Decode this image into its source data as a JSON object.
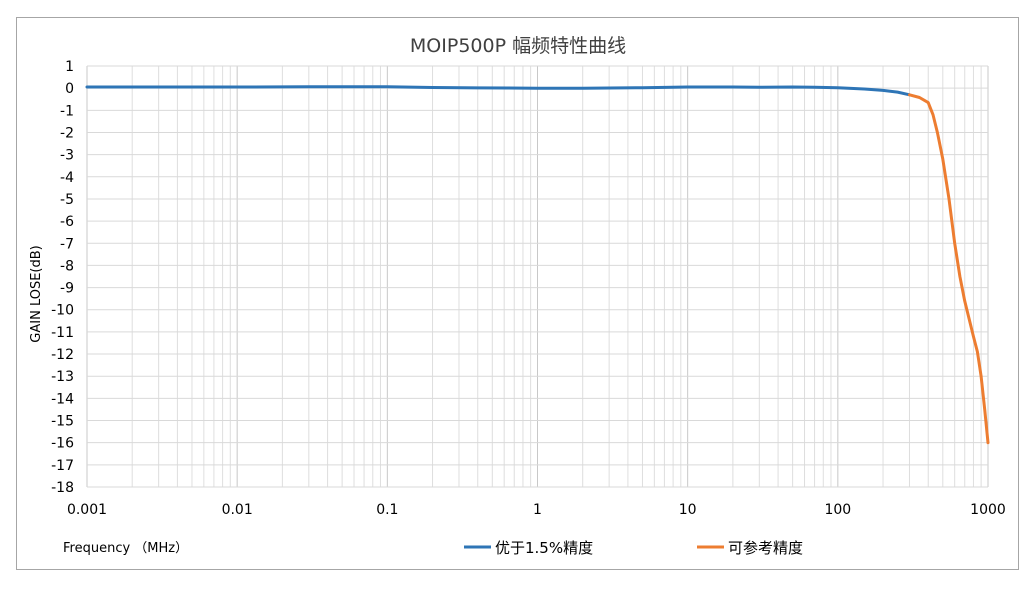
{
  "chart_data": {
    "type": "line",
    "title": "MOIP500P 幅频特性曲线",
    "xlabel": "Frequency （MHz）",
    "ylabel": "GAIN LOSE(dB)",
    "x_scale": "log",
    "xlim": [
      0.001,
      1000
    ],
    "ylim": [
      -18,
      1
    ],
    "grid": true,
    "legend_position": "bottom",
    "x_ticks": [
      "0.001",
      "0.01",
      "0.1",
      "1",
      "10",
      "100",
      "1000"
    ],
    "y_ticks": [
      "1",
      "0",
      "-1",
      "-2",
      "-3",
      "-4",
      "-5",
      "-6",
      "-7",
      "-8",
      "-9",
      "-10",
      "-11",
      "-12",
      "-13",
      "-14",
      "-15",
      "-16",
      "-17",
      "-18"
    ],
    "series": [
      {
        "name": "优于1.5%精度",
        "color": "#2e75b6",
        "x": [
          0.001,
          0.003,
          0.01,
          0.03,
          0.1,
          0.2,
          0.4,
          1,
          2,
          5,
          10,
          20,
          30,
          50,
          70,
          100,
          150,
          200,
          250,
          300
        ],
        "y": [
          0.05,
          0.05,
          0.05,
          0.06,
          0.06,
          0.03,
          0.01,
          0.0,
          0.0,
          0.02,
          0.05,
          0.05,
          0.04,
          0.05,
          0.04,
          0.02,
          -0.04,
          -0.1,
          -0.18,
          -0.3
        ]
      },
      {
        "name": "可参考精度",
        "color": "#ed7d31",
        "x": [
          300,
          350,
          400,
          430,
          460,
          500,
          550,
          600,
          650,
          700,
          800,
          850,
          900,
          950,
          1000
        ],
        "y": [
          -0.3,
          -0.42,
          -0.65,
          -1.2,
          -2.0,
          -3.2,
          -5.0,
          -7.0,
          -8.5,
          -9.6,
          -11.2,
          -11.9,
          -13.0,
          -14.5,
          -16.0
        ]
      }
    ]
  }
}
